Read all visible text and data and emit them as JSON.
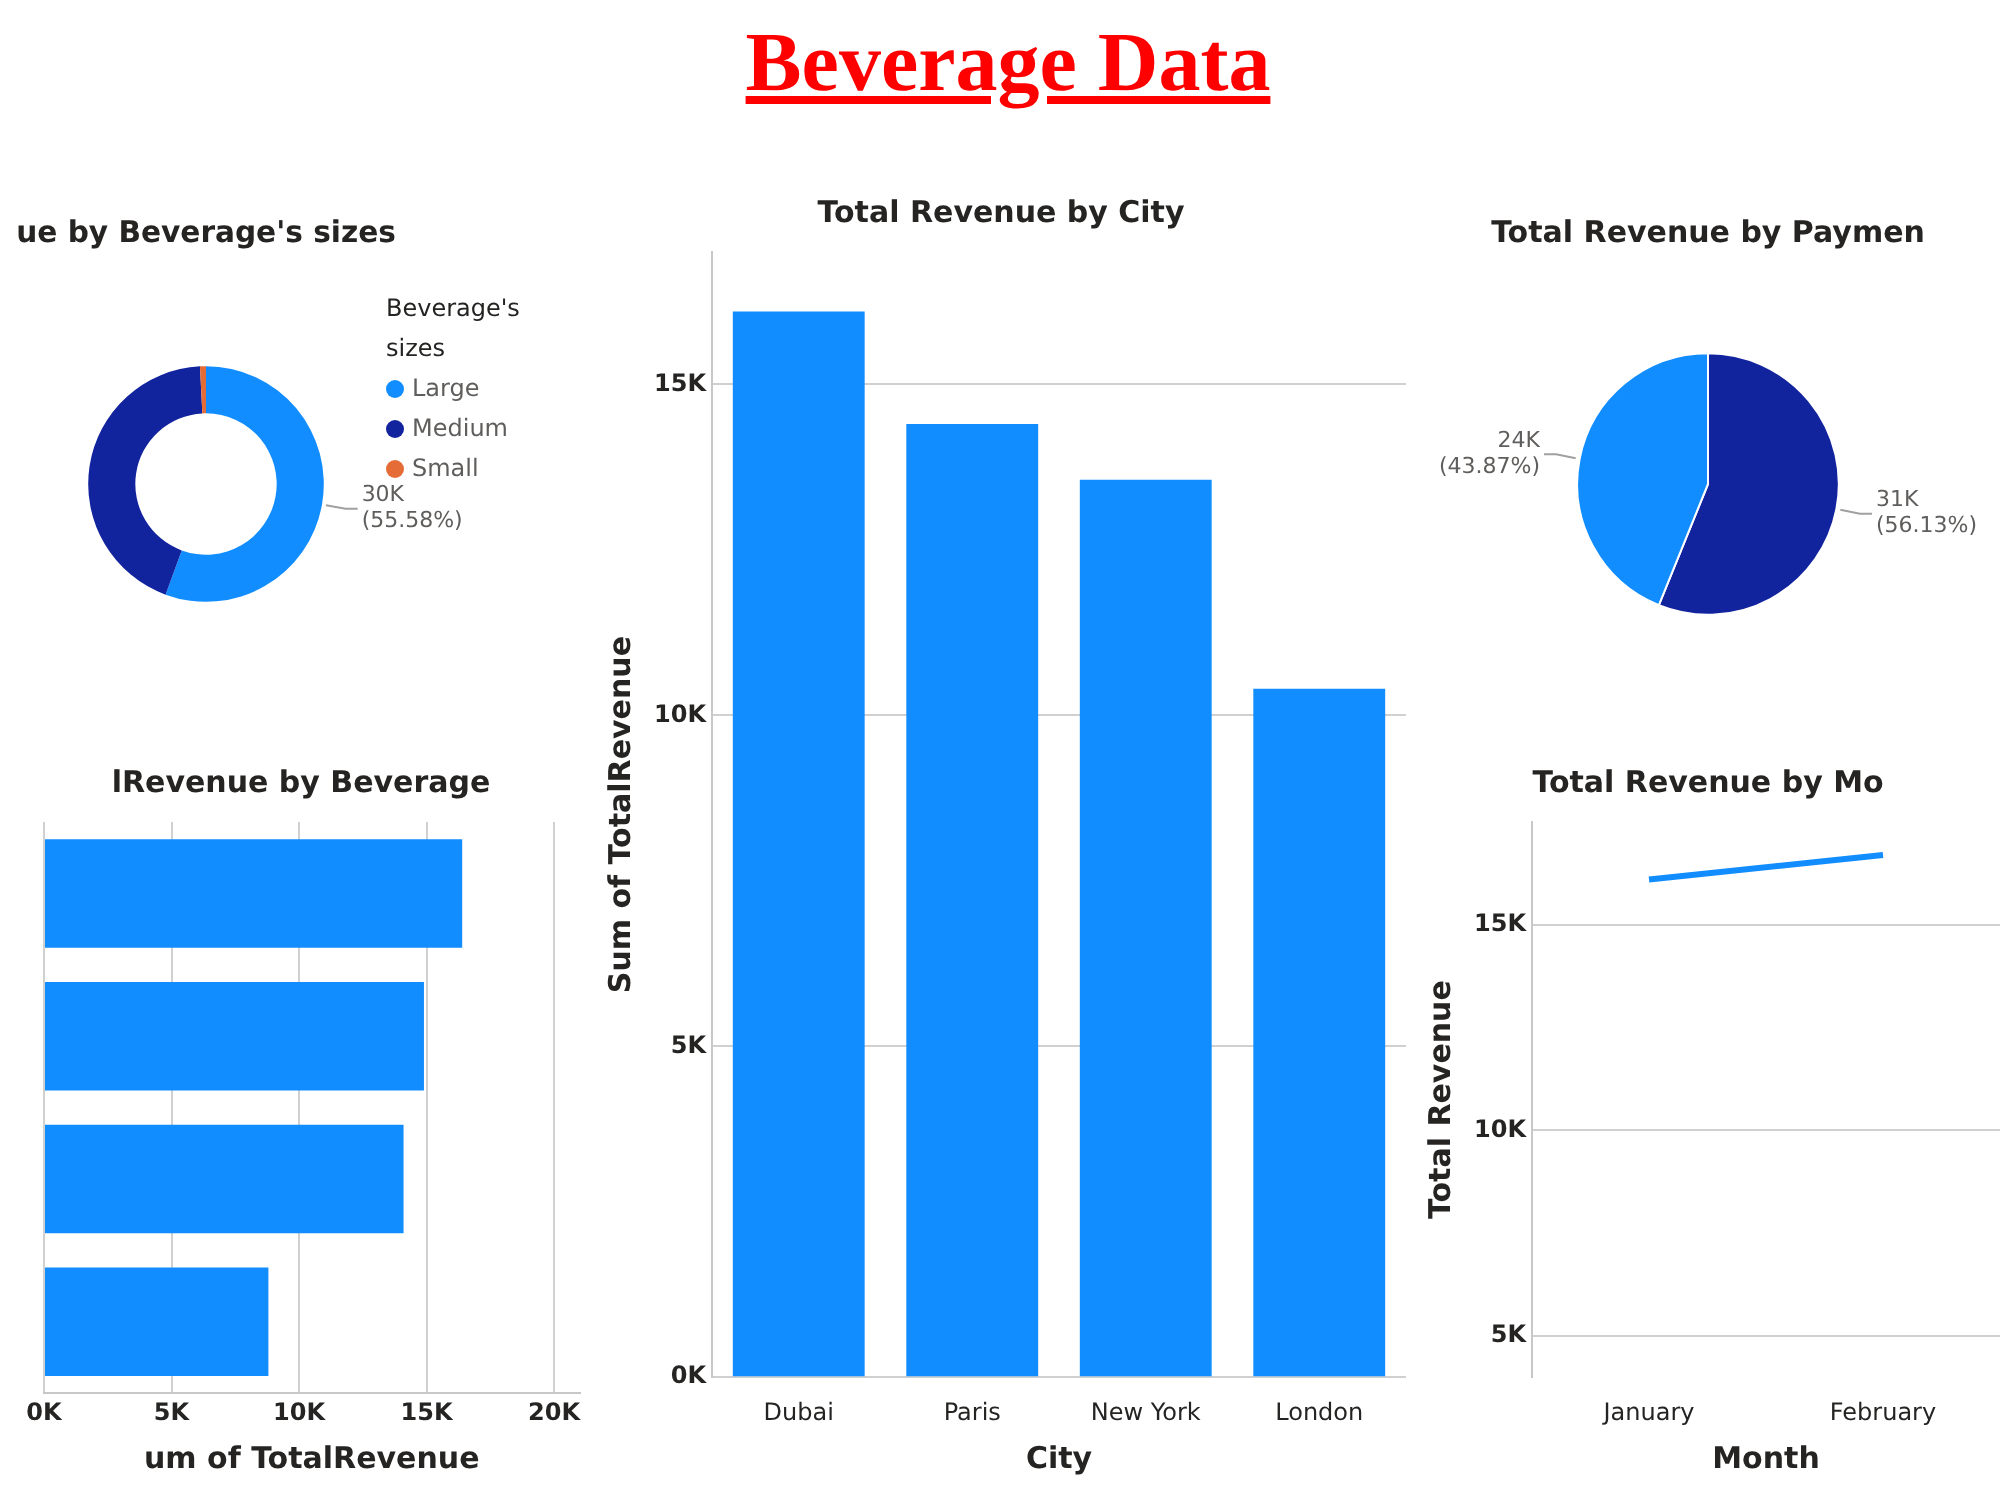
{
  "chart_data": [
    {
      "type": "donut",
      "title": "ue by Beverage's sizes",
      "annotations": [
        "Beverage Data"
      ],
      "categories": [
        "Large",
        "Medium",
        "Small"
      ],
      "values": [
        55.58,
        43.6,
        0.82
      ],
      "colors": [
        "#118dff",
        "#12239e",
        "#e66c37"
      ],
      "legend": "right",
      "legend_title": "Beverage's sizes",
      "value_labels": [
        "30K (55.58%)",
        null,
        null
      ]
    },
    {
      "type": "bar",
      "orientation": "horizontal",
      "title": "lRevenue by Beverage",
      "xlabel": "um of TotalRevenue",
      "categories": [
        null,
        null,
        null,
        null
      ],
      "values": [
        16400,
        14900,
        14100,
        8800
      ],
      "color": "#118dff",
      "xlim": [
        0,
        21000
      ],
      "xticks": [
        {
          "value": 0,
          "label": "0K"
        },
        {
          "value": 5000,
          "label": "5K"
        },
        {
          "value": 10000,
          "label": "10K"
        },
        {
          "value": 15000,
          "label": "15K"
        },
        {
          "value": 20000,
          "label": "20K"
        }
      ],
      "grid": "x"
    },
    {
      "type": "bar",
      "title": "Total Revenue by City",
      "xlabel": "City",
      "ylabel": "Sum of TotalRevenue",
      "categories": [
        "Dubai",
        "Paris",
        "New York",
        "London"
      ],
      "values": [
        16100,
        14400,
        13560,
        10400
      ],
      "color": "#118dff",
      "ylim": [
        0,
        17000
      ],
      "yticks": [
        {
          "value": 0,
          "label": "0K"
        },
        {
          "value": 5000,
          "label": "5K"
        },
        {
          "value": 10000,
          "label": "10K"
        },
        {
          "value": 15000,
          "label": "15K"
        }
      ],
      "grid": "y"
    },
    {
      "type": "pie",
      "title": "Total Revenue by Paymen",
      "categories": [
        null,
        null
      ],
      "values": [
        56.13,
        43.87
      ],
      "colors": [
        "#12239e",
        "#118dff"
      ],
      "value_labels": [
        "31K (56.13%)",
        "24K (43.87%)"
      ]
    },
    {
      "type": "line",
      "title": "Total Revenue by Mo",
      "xlabel": "Month",
      "ylabel": "Total Revenue",
      "categories": [
        "January",
        "February"
      ],
      "values": [
        16100,
        16700
      ],
      "color": "#118dff",
      "ylim": [
        4000,
        17500
      ],
      "yticks": [
        {
          "value": 5000,
          "label": "5K"
        },
        {
          "value": 10000,
          "label": "10K"
        },
        {
          "value": 15000,
          "label": "15K"
        }
      ],
      "grid": "y",
      "marker": "none"
    }
  ]
}
